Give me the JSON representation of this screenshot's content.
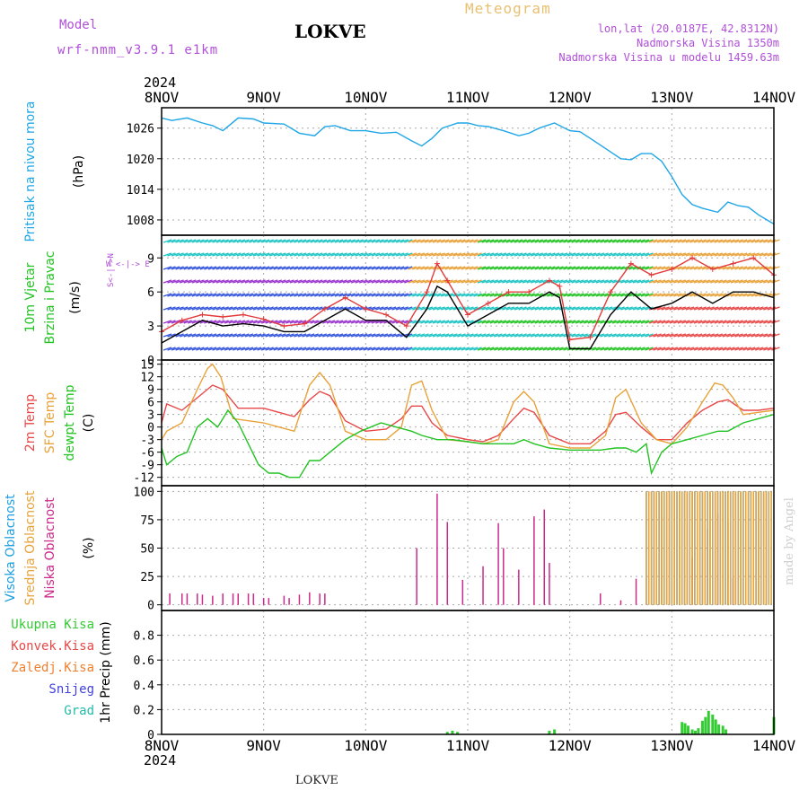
{
  "header": {
    "model_label": "Model",
    "model_name": "wrf-nmm_v3.9.1 e1km",
    "station": "LOKVE",
    "meteogram": "Meteogram",
    "lonlat": "lon,lat (20.0187E, 42.8312N)",
    "altitude": "Nadmorska Visina 1350m",
    "model_altitude": "Nadmorska Visina u modelu 1459.63m",
    "year": "2024",
    "footer_station": "LOKVE",
    "credit": "made by Angel"
  },
  "colors": {
    "pressure": "#1fa6e6",
    "wind_black": "#000000",
    "gust_red": "#e23b3b",
    "temp2m": "#e84848",
    "sfc_temp": "#e8a23a",
    "dewpt": "#22c322",
    "high_cloud": "#1e9fe0",
    "mid_cloud": "#e8a23a",
    "low_cloud": "#cc2a8a",
    "precip_total": "#33cc33",
    "precip_conv": "#e84848",
    "precip_frozen": "#f08030",
    "snow": "#4040dd",
    "graupel": "#22bbaa",
    "purple_text": "#b04fd8",
    "gold_text": "#e8c070"
  },
  "chart_data": {
    "type": "line",
    "x_ticks": [
      "8NOV",
      "9NOV",
      "10NOV",
      "11NOV",
      "12NOV",
      "13NOV",
      "14NOV"
    ],
    "x_range_days": [
      0,
      6
    ],
    "panels": [
      {
        "id": "pressure",
        "ylabel_lines": [
          "Pritisak na nivou mora",
          "(hPa)"
        ],
        "ylim": [
          1005,
          1030
        ],
        "yticks": [
          1008,
          1014,
          1020,
          1026
        ],
        "series": [
          {
            "name": "Pritisak na nivou mora",
            "color": "#1fa6e6",
            "x": [
              0,
              0.1,
              0.25,
              0.4,
              0.5,
              0.6,
              0.75,
              0.9,
              1.0,
              1.2,
              1.35,
              1.5,
              1.6,
              1.7,
              1.85,
              2.0,
              2.15,
              2.3,
              2.45,
              2.55,
              2.65,
              2.75,
              2.9,
              3.0,
              3.1,
              3.2,
              3.35,
              3.5,
              3.6,
              3.7,
              3.85,
              4.0,
              4.1,
              4.2,
              4.35,
              4.5,
              4.6,
              4.7,
              4.8,
              4.9,
              5.0,
              5.1,
              5.2,
              5.3,
              5.45,
              5.55,
              5.65,
              5.75,
              5.85,
              5.95,
              6.0
            ],
            "y": [
              1028,
              1027.5,
              1028,
              1027,
              1026.5,
              1025.5,
              1028,
              1027.8,
              1027,
              1026.8,
              1025,
              1024.5,
              1026.3,
              1026.5,
              1025.5,
              1025.5,
              1025,
              1025.2,
              1023.5,
              1022.5,
              1024,
              1026,
              1027,
              1027,
              1026.5,
              1026.3,
              1025.5,
              1024.5,
              1025,
              1026,
              1027,
              1025.5,
              1025.3,
              1024,
              1022,
              1020,
              1019.8,
              1021,
              1021,
              1019.5,
              1016.5,
              1013,
              1011,
              1010.3,
              1009.5,
              1011.5,
              1010.8,
              1010.5,
              1009,
              1007.8,
              1007.2
            ]
          }
        ]
      },
      {
        "id": "wind",
        "ylabel_lines": [
          "10m Vjetar",
          "Brzina i Pravac",
          "(m/s)"
        ],
        "ylim": [
          0,
          11
        ],
        "yticks": [
          0,
          3,
          6,
          9
        ],
        "series": [
          {
            "name": "wind speed",
            "color": "#000000",
            "x": [
              0,
              0.2,
              0.4,
              0.6,
              0.8,
              1.0,
              1.2,
              1.4,
              1.6,
              1.8,
              2.0,
              2.2,
              2.4,
              2.6,
              2.7,
              2.8,
              3.0,
              3.2,
              3.4,
              3.6,
              3.8,
              3.9,
              4.0,
              4.2,
              4.4,
              4.6,
              4.8,
              5.0,
              5.2,
              5.4,
              5.6,
              5.8,
              6.0
            ],
            "y": [
              1.5,
              2.5,
              3.5,
              3.0,
              3.2,
              3.0,
              2.5,
              2.5,
              3.5,
              4.5,
              3.5,
              3.5,
              2.0,
              4.5,
              6.5,
              6.0,
              3.0,
              4.0,
              5.0,
              5.0,
              6.0,
              5.5,
              1.0,
              1.0,
              4.0,
              6.0,
              4.5,
              5.0,
              6.0,
              5.0,
              6.0,
              6.0,
              5.5
            ]
          },
          {
            "name": "gust",
            "color": "#e23b3b",
            "x": [
              0,
              0.2,
              0.4,
              0.6,
              0.8,
              1.0,
              1.2,
              1.4,
              1.6,
              1.8,
              2.0,
              2.2,
              2.4,
              2.6,
              2.7,
              2.8,
              3.0,
              3.2,
              3.4,
              3.6,
              3.8,
              3.9,
              4.0,
              4.2,
              4.4,
              4.6,
              4.8,
              5.0,
              5.2,
              5.4,
              5.6,
              5.8,
              6.0
            ],
            "y": [
              2.5,
              3.5,
              4.0,
              3.8,
              4.0,
              3.6,
              3.0,
              3.2,
              4.5,
              5.5,
              4.5,
              4.0,
              3.0,
              6.0,
              8.5,
              7.0,
              4.0,
              5.0,
              6.0,
              6.0,
              7.0,
              6.5,
              1.8,
              2.0,
              6.0,
              8.5,
              7.5,
              8.0,
              9.0,
              8.0,
              8.5,
              9.0,
              7.5
            ]
          }
        ]
      },
      {
        "id": "temp",
        "ylabel_lines": [
          "2m Temp",
          "SFC Temp",
          "dewpt Temp",
          "(C)"
        ],
        "ylim": [
          -14,
          16
        ],
        "yticks": [
          -12,
          -9,
          -6,
          -3,
          0,
          3,
          6,
          9,
          12,
          15
        ],
        "series": [
          {
            "name": "2m Temp",
            "color": "#e84848",
            "x": [
              0,
              0.05,
              0.2,
              0.35,
              0.5,
              0.6,
              0.75,
              0.9,
              1.0,
              1.15,
              1.3,
              1.45,
              1.55,
              1.65,
              1.8,
              2.0,
              2.2,
              2.35,
              2.45,
              2.55,
              2.65,
              2.8,
              3.0,
              3.15,
              3.3,
              3.45,
              3.55,
              3.65,
              3.8,
              4.0,
              4.2,
              4.35,
              4.45,
              4.55,
              4.7,
              4.85,
              5.0,
              5.15,
              5.3,
              5.45,
              5.55,
              5.7,
              5.85,
              6.0
            ],
            "y": [
              1,
              5.5,
              4,
              7,
              10,
              9,
              4.5,
              4.5,
              4.5,
              3.5,
              2.5,
              6.5,
              8.5,
              7.5,
              1.5,
              -1,
              -0.5,
              2,
              5,
              5,
              1,
              -2,
              -3,
              -3.5,
              -2,
              2,
              4.5,
              3.5,
              -2,
              -4,
              -4,
              -1,
              3,
              3.5,
              0,
              -3,
              -3,
              1,
              4,
              6,
              6.5,
              4,
              4,
              4.5
            ]
          },
          {
            "name": "SFC Temp",
            "color": "#e8a23a",
            "x": [
              0,
              0.05,
              0.2,
              0.35,
              0.45,
              0.5,
              0.58,
              0.7,
              0.85,
              1.0,
              1.15,
              1.3,
              1.45,
              1.55,
              1.65,
              1.8,
              2.0,
              2.2,
              2.35,
              2.45,
              2.55,
              2.65,
              2.8,
              3.0,
              3.15,
              3.3,
              3.45,
              3.55,
              3.65,
              3.8,
              4.0,
              4.2,
              4.35,
              4.45,
              4.55,
              4.7,
              4.85,
              5.0,
              5.15,
              5.3,
              5.42,
              5.5,
              5.6,
              5.7,
              5.85,
              6.0
            ],
            "y": [
              -3,
              -1,
              1,
              9,
              14,
              15,
              12,
              2,
              1.5,
              1,
              0,
              -1,
              10,
              13,
              10,
              -1,
              -3,
              -3,
              0,
              10,
              11,
              4,
              -3,
              -3.5,
              -4,
              -3,
              6,
              8.5,
              6,
              -4,
              -5,
              -5,
              -2,
              7,
              9,
              1,
              -3,
              -4,
              0,
              6,
              10.5,
              10,
              7,
              3,
              3.5,
              4
            ]
          },
          {
            "name": "dewpt Temp",
            "color": "#22c322",
            "x": [
              0,
              0.05,
              0.15,
              0.25,
              0.35,
              0.45,
              0.55,
              0.65,
              0.75,
              0.85,
              0.95,
              1.05,
              1.15,
              1.25,
              1.35,
              1.45,
              1.55,
              1.65,
              1.8,
              1.95,
              2.05,
              2.15,
              2.3,
              2.45,
              2.55,
              2.7,
              2.85,
              3.0,
              3.15,
              3.3,
              3.45,
              3.55,
              3.65,
              3.8,
              4.0,
              4.15,
              4.3,
              4.45,
              4.55,
              4.65,
              4.75,
              4.8,
              4.9,
              5.0,
              5.15,
              5.3,
              5.45,
              5.55,
              5.7,
              5.85,
              6.0
            ],
            "y": [
              -5,
              -9,
              -7,
              -6,
              0,
              2,
              0,
              4,
              1,
              -4,
              -9,
              -11,
              -11,
              -12,
              -12,
              -8,
              -8,
              -6,
              -3,
              -1,
              0,
              1,
              0,
              -1,
              -2,
              -3,
              -3,
              -3.5,
              -4,
              -4,
              -4,
              -3,
              -4,
              -5,
              -5.5,
              -5.5,
              -5.5,
              -5,
              -5,
              -6,
              -4,
              -11,
              -6,
              -4,
              -3,
              -2,
              -1,
              -1,
              1,
              2,
              3
            ]
          }
        ]
      },
      {
        "id": "cloud",
        "ylabel_lines": [
          "Visoka Oblacnost",
          "Srednja Oblacnost",
          "Niska Oblacnost",
          "(%)"
        ],
        "ylim": [
          -5,
          105
        ],
        "yticks": [
          0,
          25,
          50,
          75,
          100
        ],
        "bars": [
          {
            "name": "Niska Oblacnost",
            "color": "#cc2a8a",
            "x": [
              0.08,
              0.2,
              0.25,
              0.35,
              0.4,
              0.5,
              0.6,
              0.7,
              0.75,
              0.85,
              0.9,
              1.0,
              1.05,
              1.2,
              1.25,
              1.35,
              1.45,
              1.55,
              1.6,
              2.5,
              2.7,
              2.8,
              2.95,
              3.15,
              3.3,
              3.35,
              3.5,
              3.65,
              3.75,
              3.8,
              4.3,
              4.5,
              4.65,
              5.2,
              5.35,
              5.45,
              5.55,
              5.6
            ],
            "values": [
              10,
              10,
              10,
              10,
              9,
              8,
              10,
              10,
              10,
              10,
              10,
              6,
              6,
              8,
              6,
              9,
              11,
              10,
              10,
              50,
              98,
              73,
              22,
              34,
              72,
              50,
              31,
              78,
              84,
              37,
              10,
              4,
              23,
              42,
              67,
              80,
              73,
              24
            ]
          },
          {
            "name": "Visoka Oblacnost",
            "color": "#1e9fe0",
            "x": [
              4.75,
              6.0
            ],
            "values": [
              100,
              100
            ]
          },
          {
            "name": "Srednja Oblacnost",
            "color": "#e8a23a",
            "x": [
              4.75,
              6.0
            ],
            "values": [
              100,
              100
            ]
          }
        ]
      },
      {
        "id": "precip",
        "ylabel_lines": [
          "Ukupna Kisa",
          "Konvek.Kisa",
          "Zaledj.Kisa",
          "Snijeg",
          "Grad",
          "1hr Precip (mm)"
        ],
        "ylim": [
          0,
          1.0
        ],
        "yticks": [
          0,
          0.2,
          0.4,
          0.6,
          0.8
        ],
        "bars": [
          {
            "name": "Ukupna Kisa",
            "color": "#33cc33",
            "x": [
              2.8,
              2.85,
              2.9,
              3.8,
              3.85,
              5.1,
              5.13,
              5.16,
              5.2,
              5.23,
              5.26,
              5.3,
              5.33,
              5.36,
              5.4,
              5.43,
              5.46,
              5.5,
              5.53,
              6.0
            ],
            "values": [
              0.02,
              0.03,
              0.02,
              0.03,
              0.04,
              0.1,
              0.09,
              0.07,
              0.04,
              0.03,
              0.05,
              0.11,
              0.14,
              0.19,
              0.16,
              0.12,
              0.08,
              0.07,
              0.04,
              0.14
            ]
          }
        ]
      }
    ]
  }
}
